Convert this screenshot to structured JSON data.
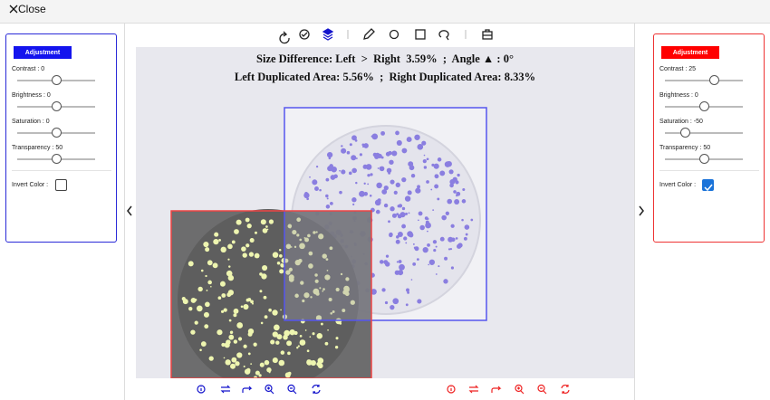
{
  "header": {
    "close": "Close"
  },
  "left_panel": {
    "title": "Adjustment",
    "controls": [
      "Contrast : 0",
      "Brightness : 0",
      "Saturation : 0",
      "Transparency : 50"
    ],
    "invert_color": "Invert Color :"
  },
  "right_panel": {
    "title": "Adjustment",
    "controls": [
      "Contrast : 25",
      "Brightness : 0",
      "Saturation : -50",
      "Transparency : 50"
    ],
    "invert_color": "Invert Color :"
  },
  "canvas": {
    "line1": "Size Difference: Left  >  Right  3.59%  ;  Angle ▲ : 0°",
    "line2": "Left Duplicated Area: 5.56%  ;  Right Duplicated Area: 8.33%"
  }
}
